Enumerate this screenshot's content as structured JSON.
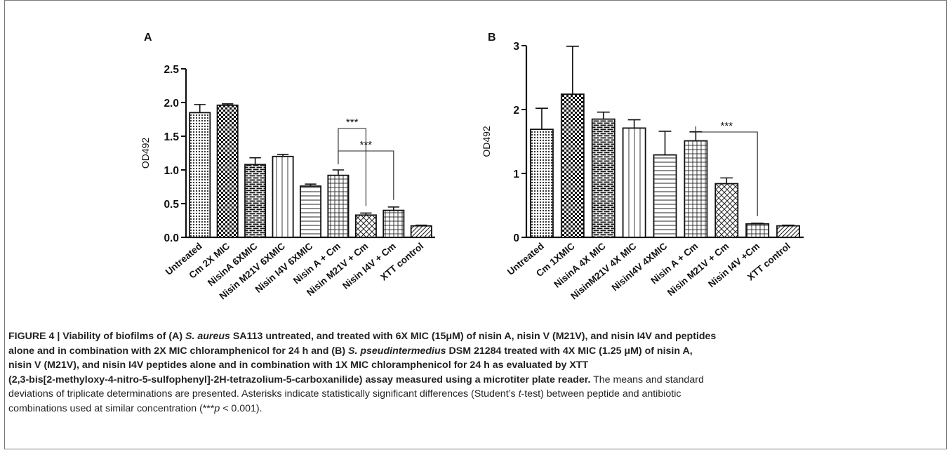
{
  "chart_data": [
    {
      "panel": "A",
      "type": "bar",
      "ylabel": "OD492",
      "ylim": [
        0,
        2.5
      ],
      "yticks": [
        "0.0",
        "0.5",
        "1.0",
        "1.5",
        "2.0",
        "2.5"
      ],
      "categories": [
        "Untreated",
        "Cm 2X MIC",
        "NisinA 6XMIC",
        "Nisin M21V 6XMIC",
        "Nisin I4V 6XMIC",
        "Nisin A + Cm",
        "Nisin M21V + Cm",
        "Nisin I4V + Cm",
        "XTT control"
      ],
      "values": [
        1.85,
        1.96,
        1.08,
        1.2,
        0.76,
        0.92,
        0.33,
        0.4,
        0.17
      ],
      "errors": [
        0.12,
        0.02,
        0.1,
        0.03,
        0.03,
        0.08,
        0.03,
        0.05,
        0.01
      ],
      "patterns": [
        "dots",
        "checker",
        "brick",
        "vlines",
        "hlines",
        "grid",
        "crosshatch",
        "grid",
        "diag"
      ],
      "significance": [
        {
          "from": "Nisin A + Cm",
          "to": "Nisin M21V + Cm",
          "label": "***"
        },
        {
          "from": "Nisin A + Cm",
          "to": "Nisin I4V + Cm",
          "label": "***"
        }
      ]
    },
    {
      "panel": "B",
      "type": "bar",
      "ylabel": "OD492",
      "ylim": [
        0,
        3
      ],
      "yticks": [
        "0",
        "1",
        "2",
        "3"
      ],
      "categories": [
        "Untreated",
        "Cm 1XMIC",
        "NisinA 4X MIC",
        "NisinM21V 4X MIC",
        "NisinI4V 4XMIC",
        "Nisin A + Cm",
        "Nisin M21V + Cm",
        "Nisin I4V +Cm",
        "XTT control"
      ],
      "values": [
        1.69,
        2.24,
        1.85,
        1.71,
        1.29,
        1.51,
        0.84,
        0.21,
        0.18
      ],
      "errors": [
        0.33,
        0.75,
        0.11,
        0.13,
        0.37,
        0.14,
        0.09,
        0.01,
        0.01
      ],
      "patterns": [
        "dots",
        "checker",
        "brick",
        "vlines",
        "hlines",
        "grid",
        "crosshatch",
        "grid",
        "diag"
      ],
      "significance": [
        {
          "from": "Nisin A + Cm",
          "to": "Nisin I4V +Cm",
          "label": "***"
        }
      ]
    }
  ],
  "caption": {
    "lines": [
      [
        {
          "t": "FIGURE 4 | Viability of biofilms of (A) ",
          "b": true
        },
        {
          "t": "S. aureus",
          "b": true,
          "i": true
        },
        {
          "t": " SA113 untreated, and treated with 6X MIC (15μM) of nisin A, nisin V (M21V), and nisin I4V and peptides",
          "b": true
        }
      ],
      [
        {
          "t": "alone and in combination with 2X MIC chloramphenicol for 24 h and (B) ",
          "b": true
        },
        {
          "t": "S. pseudintermedius",
          "b": true,
          "i": true
        },
        {
          "t": " DSM 21284 treated with 4X MIC (1.25 μM) of nisin A,",
          "b": true
        }
      ],
      [
        {
          "t": "nisin V (M21V), and nisin I4V peptides alone and in combination with 1X MIC chloramphenicol for 24 h as evaluated by XTT",
          "b": true
        }
      ],
      [
        {
          "t": "(2,3-bis[2-methyloxy-4-nitro-5-sulfophenyl]-2H-tetrazolium-5-carboxanilide) assay measured using a microtiter plate reader.",
          "b": true
        },
        {
          "t": " The means and standard",
          "b": false
        }
      ],
      [
        {
          "t": "deviations of triplicate determinations are presented. Asterisks indicate statistically significant differences (Student’s ",
          "b": false
        },
        {
          "t": "t",
          "b": false,
          "i": true
        },
        {
          "t": "-test) between peptide and antibiotic",
          "b": false
        }
      ],
      [
        {
          "t": "combinations used at similar concentration (***",
          "b": false
        },
        {
          "t": "p",
          "b": false,
          "i": true
        },
        {
          "t": " < 0.001).",
          "b": false
        }
      ]
    ]
  }
}
